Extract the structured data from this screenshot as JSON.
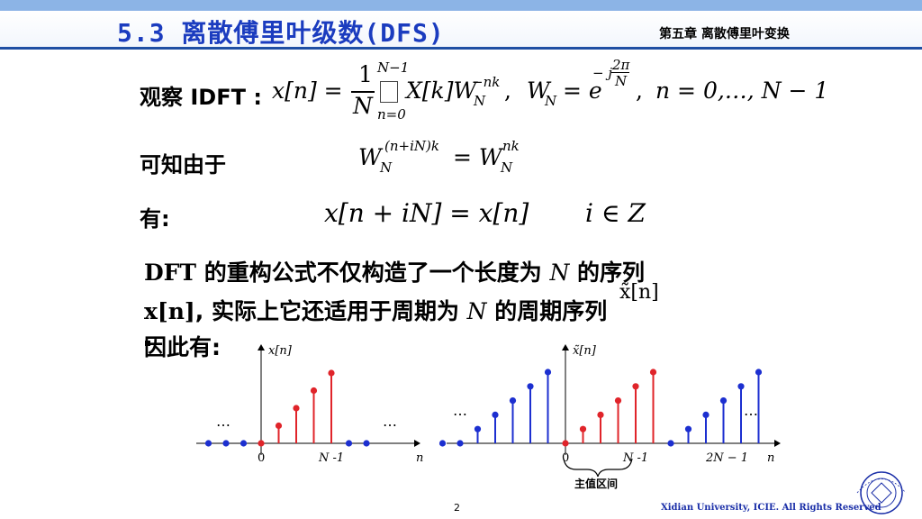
{
  "header": {
    "title": "5.3  离散傅里叶级数(DFS)",
    "chapter": "第五章 离散傅里叶变换"
  },
  "idft": {
    "label": "观察 IDFT :",
    "lhs": "x[n] =",
    "frac_num": "1",
    "frac_den": "N",
    "sum_top": "N−1",
    "sum_bot": "n=0",
    "term": "X[k]W",
    "term_sub": "N",
    "term_sup": "−nk",
    "sep1": ",",
    "wn": "W",
    "wn_sub": "N",
    "eq_e": "= e",
    "e_sup_pre": "− j",
    "e_sup_num": "2π",
    "e_sup_den": "N",
    "sep2": ",",
    "range": "n = 0,…, N − 1"
  },
  "line2": {
    "label": "可知由于",
    "w1": "W",
    "w1_sup": "(n+iN)k",
    "w1_sub": "N",
    "eq": "= W",
    "w2_sup": "nk",
    "w2_sub": "N"
  },
  "line3": {
    "label": "有:",
    "eq": "x[n + iN] = x[n]",
    "cond": "i ∈ Z"
  },
  "text": {
    "l1a": "DFT",
    "l1b": " 的重构公式不仅构造了一个长度为 ",
    "l1c": "N",
    "l1d": "  的序列",
    "l2a": "x[n]",
    "l2b": ", 实际上它还适用于周期为 ",
    "l2c": "N",
    "l2d": "  的周期序列",
    "l2e": "x̃[n]",
    "l3": "因此有:"
  },
  "plots": {
    "left": {
      "ylabel": "x[n]",
      "xlabel": "n",
      "ticks": [
        "0",
        "N -1"
      ],
      "dots_left": "…",
      "dots_right": "…"
    },
    "right": {
      "ylabel": "x̃[n]",
      "xlabel": "n",
      "ticks": [
        "0",
        "N -1",
        "2N − 1"
      ],
      "dots_left": "…",
      "dots_right": "…",
      "brace_label": "主值区间"
    }
  },
  "chart_data": [
    {
      "type": "scatter",
      "name": "",
      "x": [
        -3,
        -2,
        -1,
        0,
        1,
        2,
        3,
        4,
        5,
        6
      ],
      "values": [
        0,
        0,
        0,
        0,
        1,
        2,
        3,
        4,
        0,
        0
      ],
      "highlighted_x": [
        0,
        1,
        2,
        3,
        4
      ],
      "xlabel": "n",
      "ylabel": "x[n]"
    },
    {
      "type": "scatter",
      "name": "",
      "x": [
        -7,
        -6,
        -5,
        -4,
        -3,
        -2,
        -1,
        0,
        1,
        2,
        3,
        4,
        5,
        6,
        7,
        8,
        9,
        10,
        11
      ],
      "values": [
        0,
        0,
        1,
        2,
        3,
        4,
        5,
        0,
        1,
        2,
        3,
        4,
        5,
        0,
        1,
        2,
        3,
        4,
        5
      ],
      "highlighted_x": [
        0,
        1,
        2,
        3,
        4,
        5
      ],
      "xlabel": "n",
      "ylabel": "x̃[n]"
    }
  ],
  "colors": {
    "title": "#1b3cbf",
    "red_stem": "#e0242a",
    "blue_stem": "#1c2fd0",
    "footer": "#1b2fa8"
  },
  "footer": {
    "page": "2",
    "credit": "Xidian University, ICIE. All Rights Reserved",
    "logo": "xidian-seal-logo"
  }
}
